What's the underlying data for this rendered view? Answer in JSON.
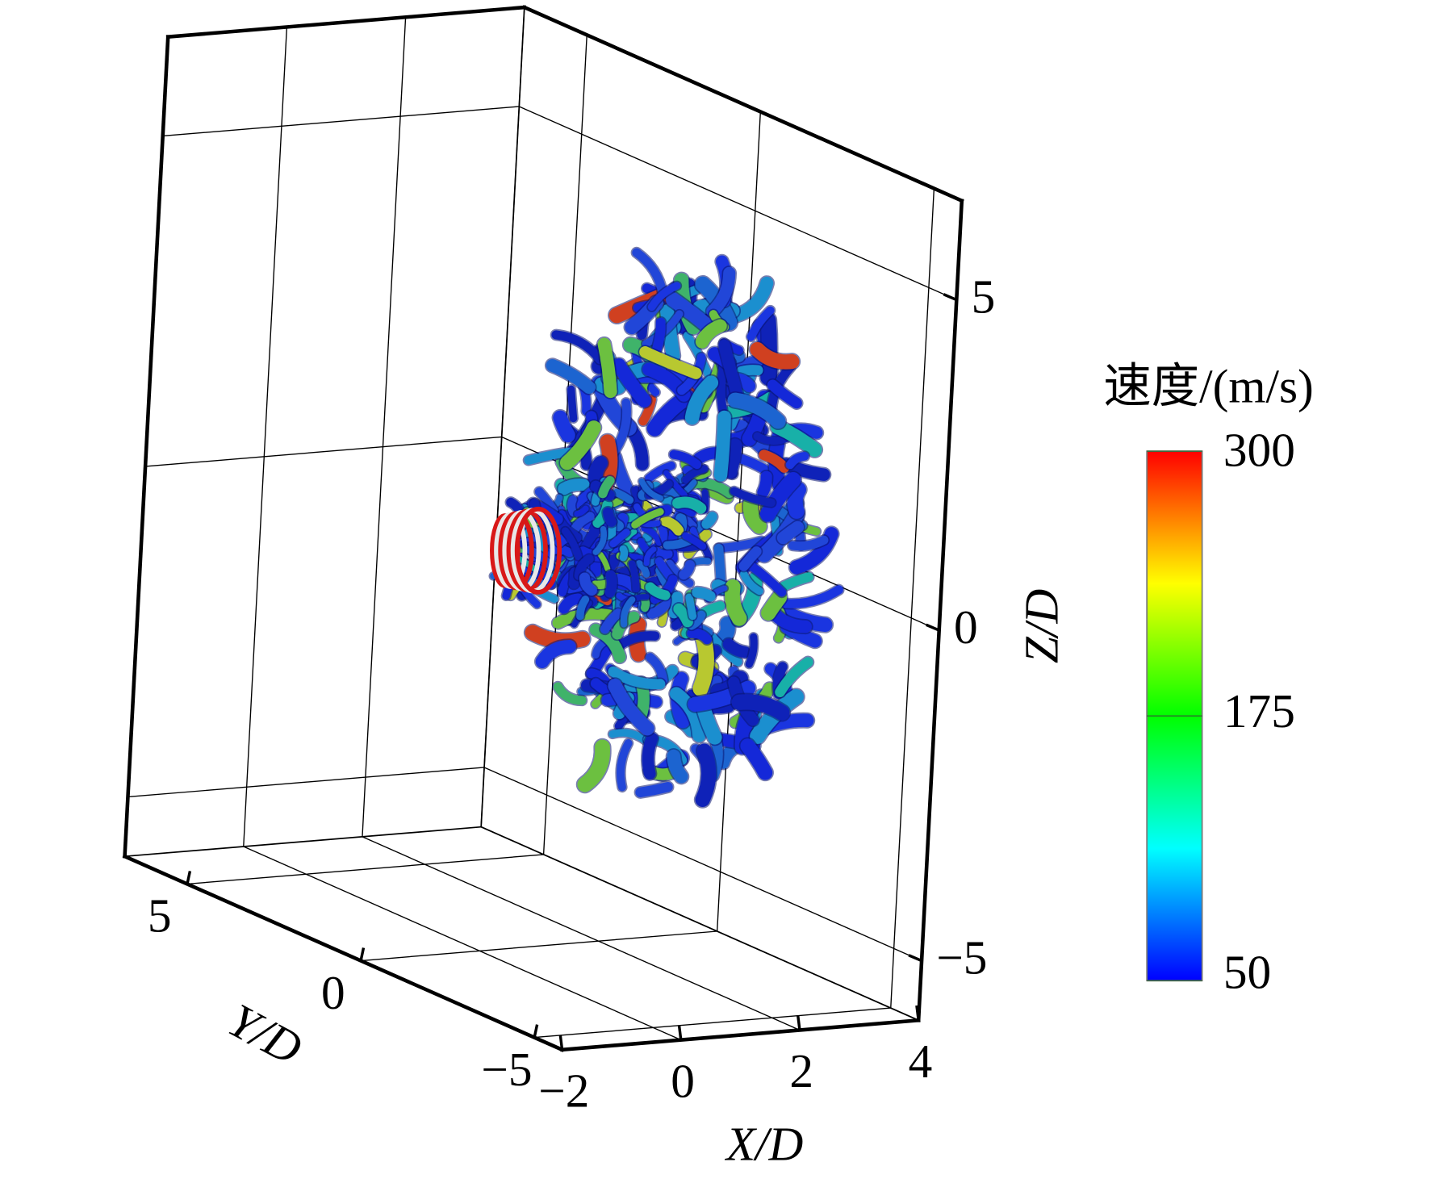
{
  "chart_data": {
    "type": "isosurface3d",
    "x_label": "X/D",
    "y_label": "Y/D",
    "z_label": "Z/D",
    "xlim": [
      -2,
      4
    ],
    "ylim": [
      -5.8,
      6.8
    ],
    "zlim": [
      -5.9,
      6.5
    ],
    "xticks": [
      {
        "value": -2,
        "label": "−2"
      },
      0,
      2,
      4
    ],
    "yticks": [
      5,
      0,
      {
        "value": -5,
        "label": "−5"
      }
    ],
    "zticks": [
      5,
      0,
      {
        "value": -5,
        "label": "−5"
      }
    ],
    "grid": true,
    "colorbar": {
      "title": "速度/(m/s)",
      "clim": [
        50,
        300
      ],
      "ticks": [
        50,
        175,
        300
      ],
      "colormap": [
        "#0000ff",
        "#00ffff",
        "#00ff00",
        "#ffff00",
        "#ff0000"
      ]
    }
  }
}
